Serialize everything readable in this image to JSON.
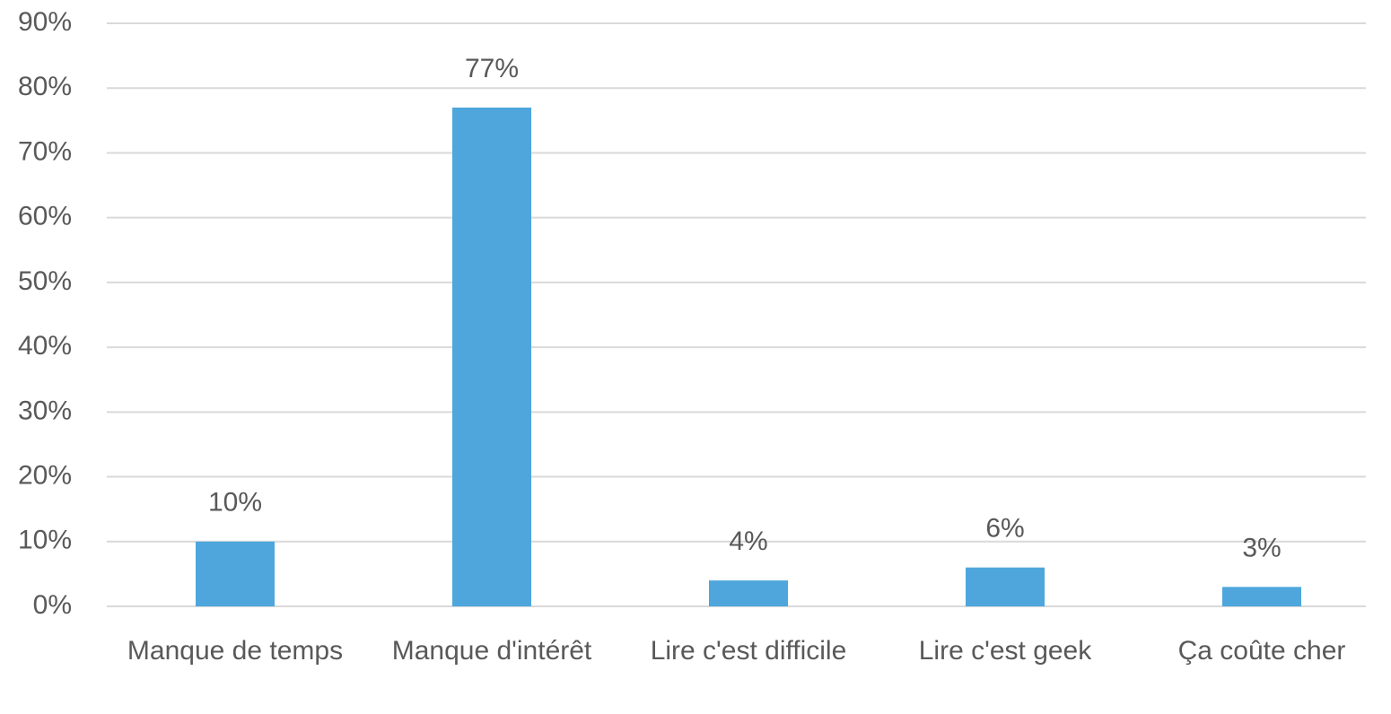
{
  "chart_data": {
    "type": "bar",
    "categories": [
      "Manque de temps",
      "Manque d'intérêt",
      "Lire c'est difficile",
      "Lire c'est geek",
      "Ça coûte cher"
    ],
    "values": [
      10,
      77,
      4,
      6,
      3
    ],
    "value_labels": [
      "10%",
      "77%",
      "4%",
      "6%",
      "3%"
    ],
    "color": "#4ea6dc",
    "ylim": [
      0,
      90
    ],
    "yticks": [
      {
        "value": 0,
        "label": "0%"
      },
      {
        "value": 10,
        "label": "10%"
      },
      {
        "value": 20,
        "label": "20%"
      },
      {
        "value": 30,
        "label": "30%"
      },
      {
        "value": 40,
        "label": "40%"
      },
      {
        "value": 50,
        "label": "50%"
      },
      {
        "value": 60,
        "label": "60%"
      },
      {
        "value": 70,
        "label": "70%"
      },
      {
        "value": 80,
        "label": "80%"
      },
      {
        "value": 90,
        "label": "90%"
      }
    ],
    "grid": true
  }
}
